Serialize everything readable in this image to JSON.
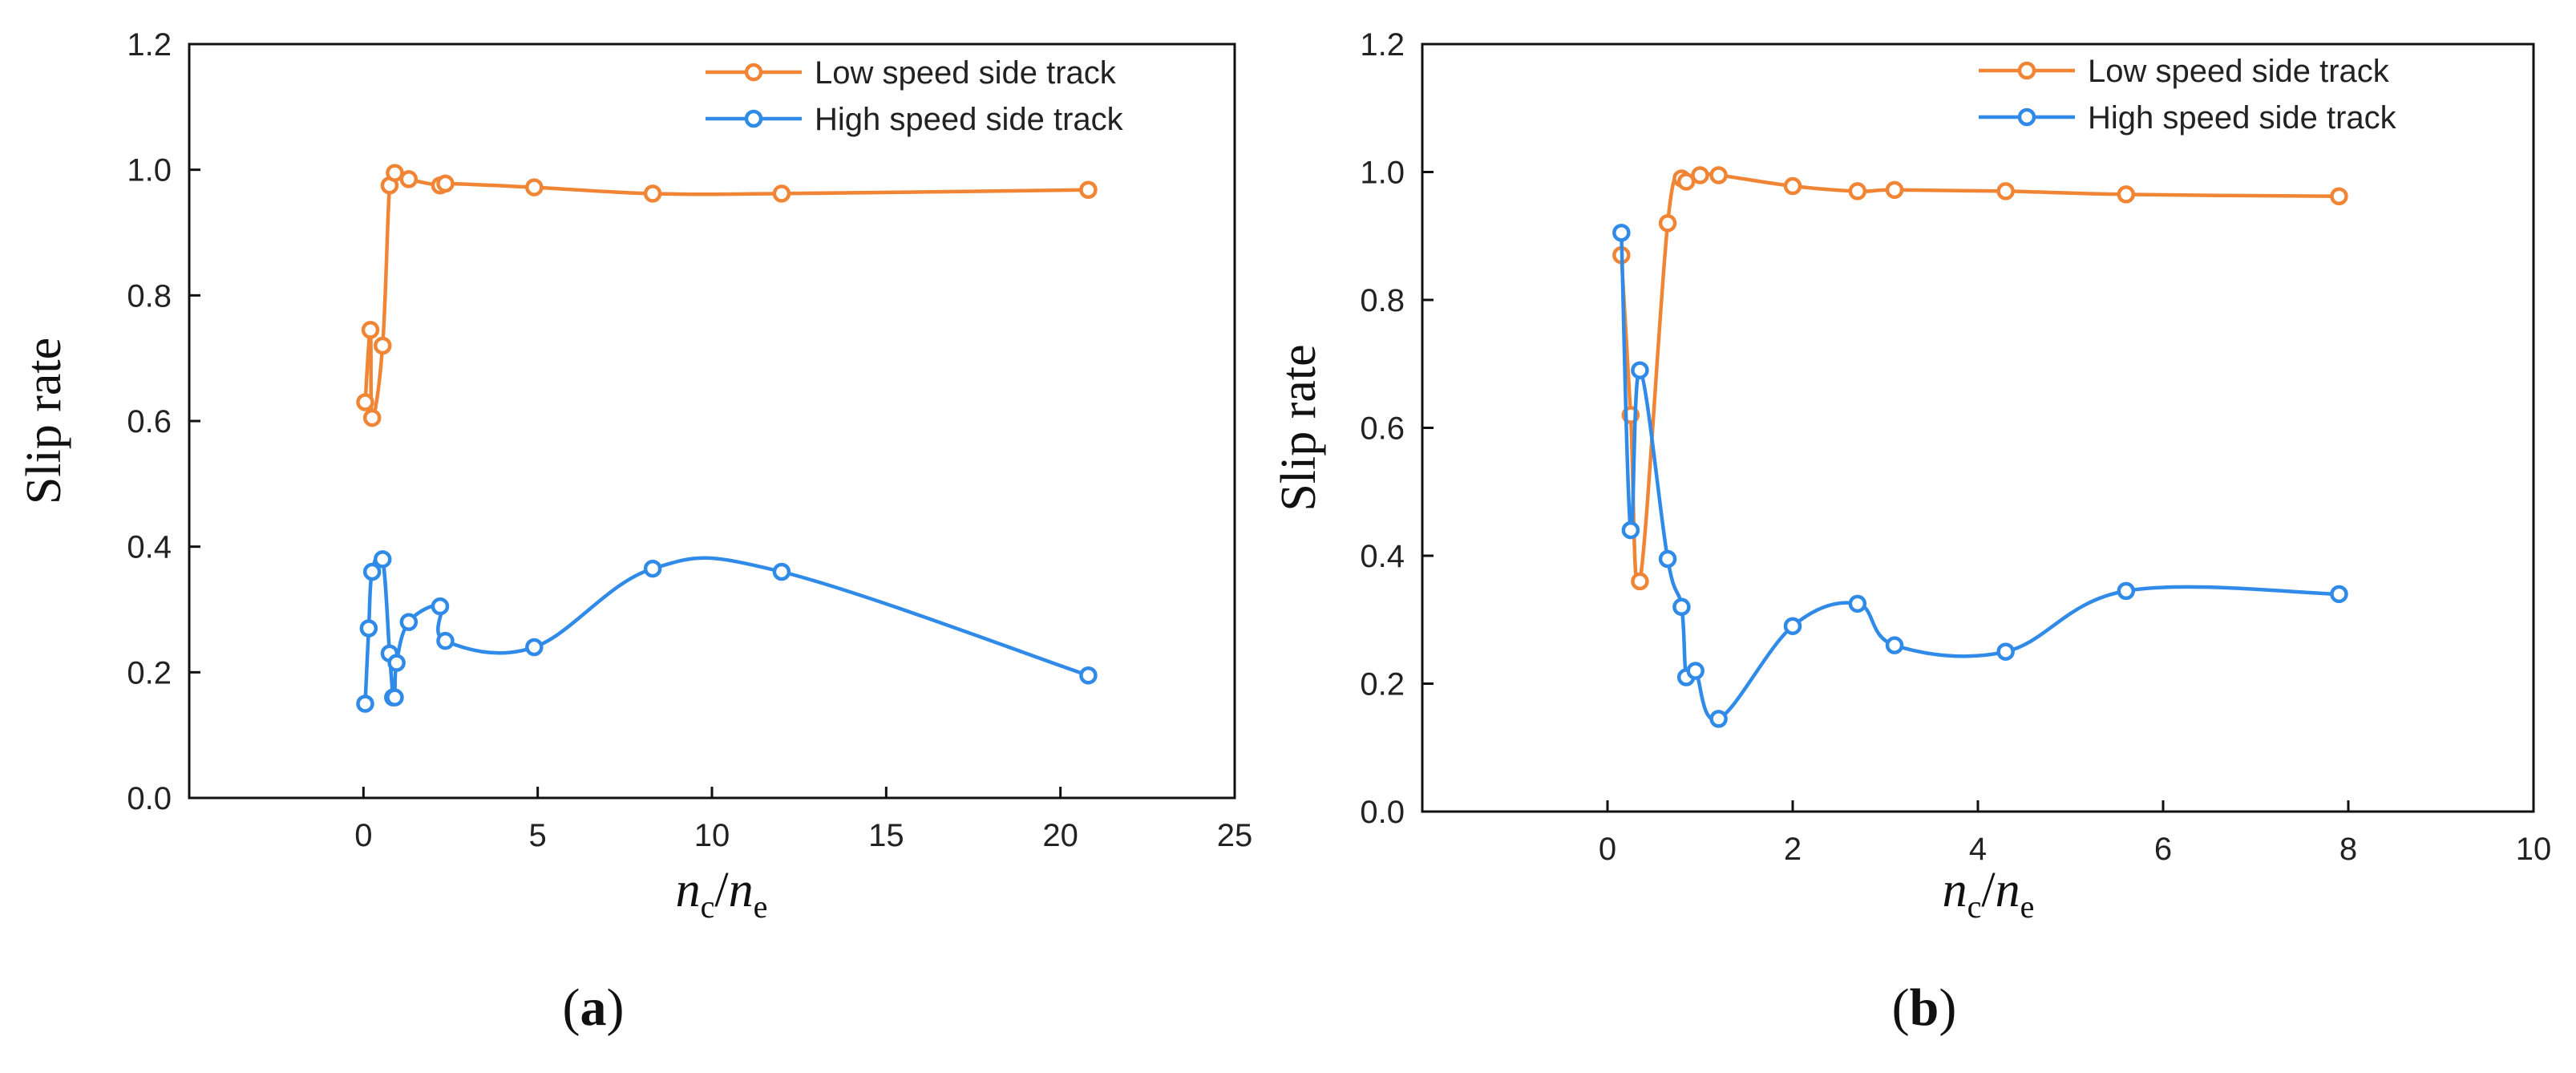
{
  "colors": {
    "low": "#F08536",
    "high": "#2F8AE8",
    "axis": "#111111"
  },
  "chart_data": [
    {
      "panel_label": "(a)",
      "panel_letter": "a",
      "type": "line",
      "ylabel": "Slip rate",
      "xlabel": {
        "n": "n",
        "c": "c",
        "slash": "/",
        "e": "e"
      },
      "xlim": [
        -5,
        25
      ],
      "ylim": [
        0,
        1.2
      ],
      "x_ticks": [
        0,
        5,
        10,
        15,
        20,
        25
      ],
      "y_ticks": [
        0.0,
        0.2,
        0.4,
        0.6,
        0.8,
        1.0,
        1.2
      ],
      "x_tick_labels": [
        "0",
        "5",
        "10",
        "15",
        "20",
        "25"
      ],
      "y_tick_labels": [
        "0.0",
        "0.2",
        "0.4",
        "0.6",
        "0.8",
        "1.0",
        "1.2"
      ],
      "legend_position": "top-right",
      "series": [
        {
          "name": "Low speed side track",
          "color_key": "low",
          "x": [
            0.05,
            0.2,
            0.25,
            0.55,
            0.75,
            0.9,
            1.3,
            2.2,
            2.35,
            4.9,
            8.3,
            12.0,
            20.8
          ],
          "y": [
            0.63,
            0.745,
            0.605,
            0.72,
            0.975,
            0.995,
            0.985,
            0.975,
            0.978,
            0.972,
            0.962,
            0.962,
            0.968
          ]
        },
        {
          "name": "High speed side track",
          "color_key": "high",
          "x": [
            0.05,
            0.15,
            0.25,
            0.55,
            0.75,
            0.85,
            0.9,
            0.95,
            1.3,
            2.2,
            2.35,
            4.9,
            8.3,
            12.0,
            20.8
          ],
          "y": [
            0.15,
            0.27,
            0.36,
            0.38,
            0.23,
            0.16,
            0.16,
            0.215,
            0.28,
            0.305,
            0.25,
            0.24,
            0.365,
            0.36,
            0.195
          ]
        }
      ]
    },
    {
      "panel_label": "(b)",
      "panel_letter": "b",
      "type": "line",
      "ylabel": "Slip rate",
      "xlabel": {
        "n": "n",
        "c": "c",
        "slash": "/",
        "e": "e"
      },
      "xlim": [
        -2,
        10
      ],
      "ylim": [
        0,
        1.2
      ],
      "x_ticks": [
        0,
        2,
        4,
        6,
        8,
        10
      ],
      "y_ticks": [
        0.0,
        0.2,
        0.4,
        0.6,
        0.8,
        1.0,
        1.2
      ],
      "x_tick_labels": [
        "0",
        "2",
        "4",
        "6",
        "8",
        "10"
      ],
      "y_tick_labels": [
        "0.0",
        "0.2",
        "0.4",
        "0.6",
        "0.8",
        "1.0",
        "1.2"
      ],
      "legend_position": "top-right",
      "series": [
        {
          "name": "Low speed side track",
          "color_key": "low",
          "x": [
            0.15,
            0.25,
            0.35,
            0.65,
            0.8,
            0.85,
            1.0,
            1.2,
            2.0,
            2.7,
            3.1,
            4.3,
            5.6,
            7.9
          ],
          "y": [
            0.87,
            0.62,
            0.36,
            0.92,
            0.99,
            0.985,
            0.995,
            0.995,
            0.978,
            0.97,
            0.972,
            0.97,
            0.965,
            0.962
          ]
        },
        {
          "name": "High speed side track",
          "color_key": "high",
          "x": [
            0.15,
            0.25,
            0.35,
            0.65,
            0.8,
            0.85,
            0.95,
            1.2,
            2.0,
            2.7,
            3.1,
            4.3,
            5.6,
            7.9
          ],
          "y": [
            0.905,
            0.44,
            0.69,
            0.395,
            0.32,
            0.21,
            0.22,
            0.145,
            0.29,
            0.325,
            0.26,
            0.25,
            0.345,
            0.34
          ]
        }
      ]
    }
  ]
}
